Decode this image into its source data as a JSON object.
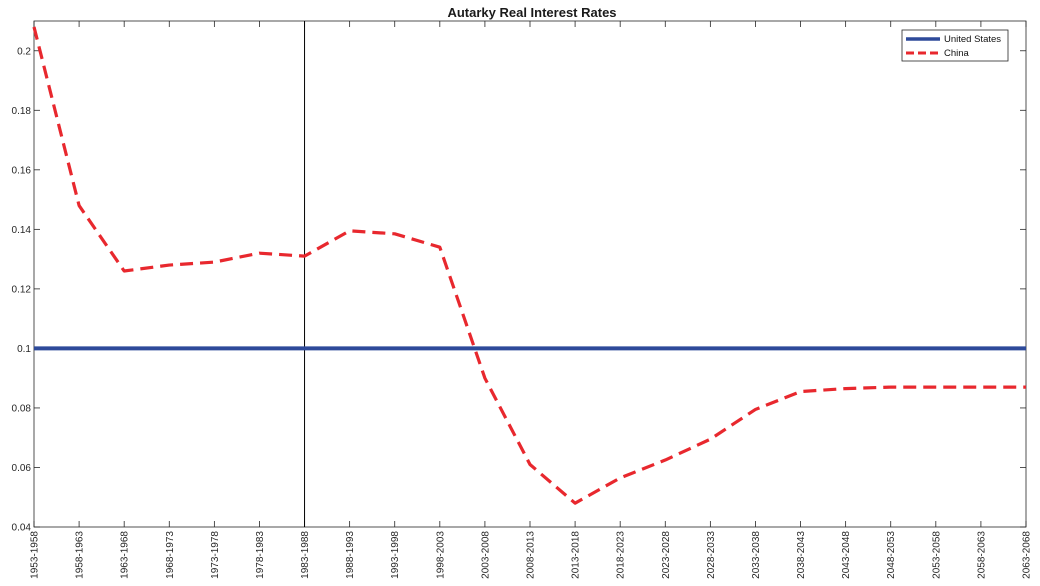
{
  "chart_data": {
    "type": "line",
    "title": "Autarky Real Interest Rates",
    "xlabel": "",
    "ylabel": "",
    "categories": [
      "1953-1958",
      "1958-1963",
      "1963-1968",
      "1968-1973",
      "1973-1978",
      "1978-1983",
      "1983-1988",
      "1988-1993",
      "1993-1998",
      "1998-2003",
      "2003-2008",
      "2008-2013",
      "2013-2018",
      "2018-2023",
      "2023-2028",
      "2028-2033",
      "2033-2038",
      "2038-2043",
      "2043-2048",
      "2048-2053",
      "2053-2058",
      "2058-2063",
      "2063-2068"
    ],
    "ylim": [
      0.04,
      0.21
    ],
    "yticks": [
      0.04,
      0.06,
      0.08,
      0.1,
      0.12,
      0.14,
      0.16,
      0.18,
      0.2
    ],
    "ytick_labels": [
      "0.04",
      "0.06",
      "0.08",
      "0.1",
      "0.12",
      "0.14",
      "0.16",
      "0.18",
      "0.2"
    ],
    "series": [
      {
        "name": "United States",
        "color": "#2e4a9a",
        "style": "solid",
        "values": [
          0.1,
          0.1,
          0.1,
          0.1,
          0.1,
          0.1,
          0.1,
          0.1,
          0.1,
          0.1,
          0.1,
          0.1,
          0.1,
          0.1,
          0.1,
          0.1,
          0.1,
          0.1,
          0.1,
          0.1,
          0.1,
          0.1,
          0.1
        ]
      },
      {
        "name": "China",
        "color": "#e8282e",
        "style": "dashed",
        "values": [
          0.208,
          0.148,
          0.126,
          0.128,
          0.129,
          0.132,
          0.131,
          0.1395,
          0.1385,
          0.134,
          0.09,
          0.061,
          0.048,
          0.0565,
          0.0625,
          0.0695,
          0.0795,
          0.0855,
          0.0865,
          0.087,
          0.087,
          0.087,
          0.087
        ]
      }
    ],
    "vertical_line_at": "1983-1988",
    "legend": {
      "location": "top-right",
      "entries": [
        "United States",
        "China"
      ]
    },
    "grid": false
  }
}
